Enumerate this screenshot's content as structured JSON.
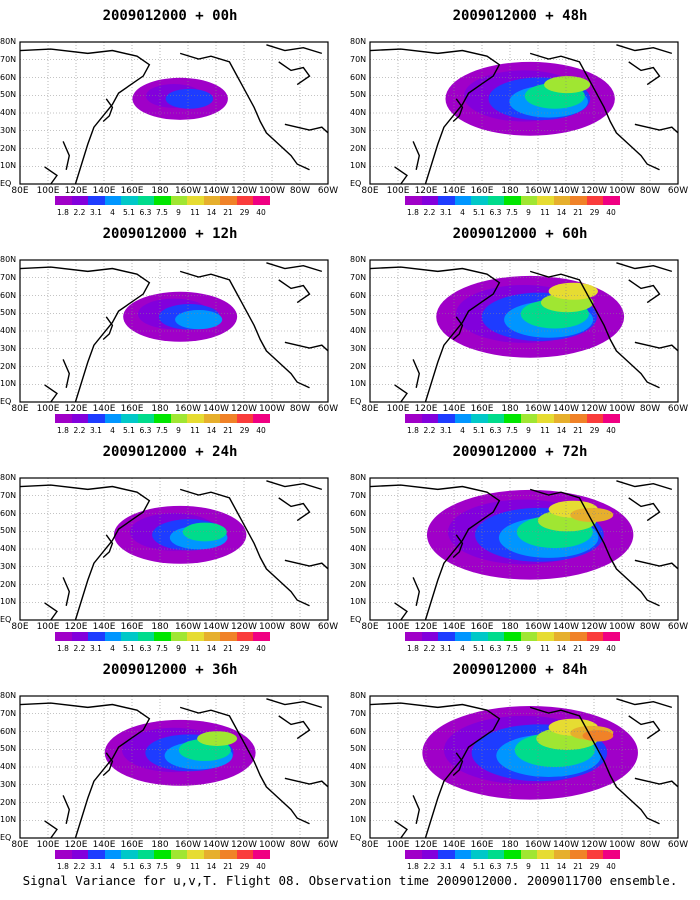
{
  "panels": [
    {
      "title": "2009012000 + 00h",
      "lead_hours": 0
    },
    {
      "title": "2009012000 + 48h",
      "lead_hours": 48
    },
    {
      "title": "2009012000 + 12h",
      "lead_hours": 12
    },
    {
      "title": "2009012000 + 60h",
      "lead_hours": 60
    },
    {
      "title": "2009012000 + 24h",
      "lead_hours": 24
    },
    {
      "title": "2009012000 + 72h",
      "lead_hours": 72
    },
    {
      "title": "2009012000 + 36h",
      "lead_hours": 36
    },
    {
      "title": "2009012000 + 84h",
      "lead_hours": 84
    }
  ],
  "lon_labels": [
    "80E",
    "100E",
    "120E",
    "140E",
    "160E",
    "180",
    "160W",
    "140W",
    "120W",
    "100W",
    "80W",
    "60W"
  ],
  "lat_labels": [
    "80N",
    "70N",
    "60N",
    "50N",
    "40N",
    "30N",
    "20N",
    "10N",
    "EQ"
  ],
  "colorbar": {
    "levels": [
      "1.8",
      "2.2",
      "3.1",
      "4",
      "5.1",
      "6.3",
      "7.5",
      "9",
      "11",
      "14",
      "21",
      "29",
      "40"
    ],
    "colors": [
      "#a000c8",
      "#8200dc",
      "#1e3cff",
      "#0096ff",
      "#00c8c8",
      "#00dc8c",
      "#00e600",
      "#a0e632",
      "#e6dc32",
      "#e6af2d",
      "#f08228",
      "#fa3c3c",
      "#f00082"
    ]
  },
  "footer": "Signal Variance for u,v,T. Flight 08. Observation time 2009012000. 2009011700 ensemble."
}
